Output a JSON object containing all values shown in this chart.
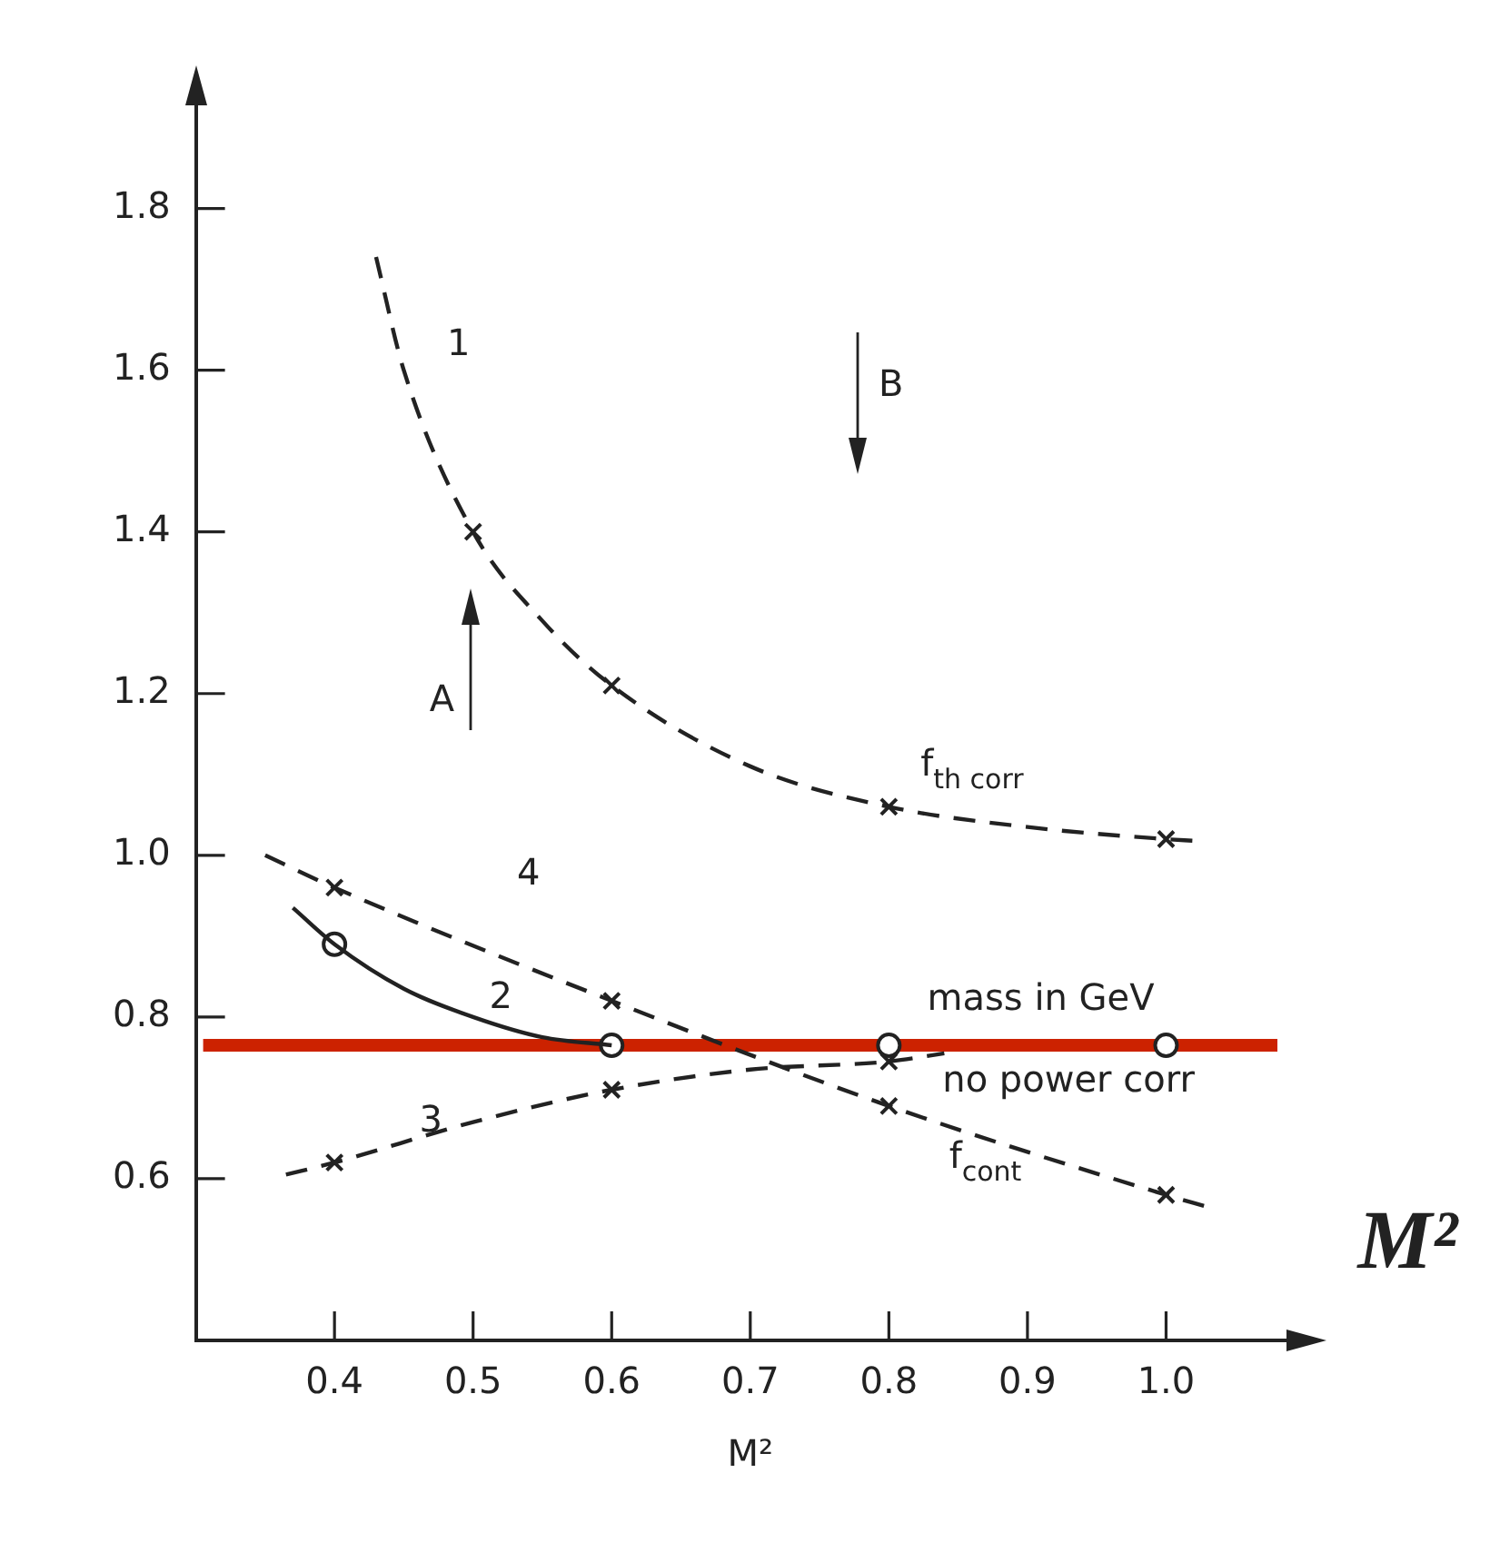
{
  "chart_data": {
    "type": "line",
    "xlabel": "M²",
    "xlim": [
      0.3,
      1.1
    ],
    "ylim": [
      0.4,
      1.95
    ],
    "xticks": [
      {
        "value": 0.4,
        "label": "0.4"
      },
      {
        "value": 0.5,
        "label": "0.5"
      },
      {
        "value": 0.6,
        "label": "0.6"
      },
      {
        "value": 0.7,
        "label": "0.7"
      },
      {
        "value": 0.8,
        "label": "0.8"
      },
      {
        "value": 0.9,
        "label": "0.9"
      },
      {
        "value": 1.0,
        "label": "1.0"
      }
    ],
    "yticks": [
      {
        "value": 0.6,
        "label": "0.6"
      },
      {
        "value": 0.8,
        "label": "0.8"
      },
      {
        "value": 1.0,
        "label": "1.0"
      },
      {
        "value": 1.2,
        "label": "1.2"
      },
      {
        "value": 1.4,
        "label": "1.4"
      },
      {
        "value": 1.6,
        "label": "1.6"
      },
      {
        "value": 1.8,
        "label": "1.8"
      }
    ],
    "grid": false,
    "legend": false,
    "series": [
      {
        "type": "line",
        "color": "#222222",
        "line_style": "dashed",
        "marker": "none",
        "x": [
          0.43,
          0.45,
          0.5,
          0.55,
          0.6,
          0.7,
          0.8,
          0.9,
          1.0,
          1.02
        ],
        "values": [
          1.74,
          1.6,
          1.4,
          1.29,
          1.21,
          1.11,
          1.06,
          1.035,
          1.02,
          1.018
        ]
      },
      {
        "type": "scatter",
        "color": "#222222",
        "marker": "cross",
        "x": [
          0.5,
          0.6,
          0.8,
          1.0
        ],
        "values": [
          1.4,
          1.21,
          1.06,
          1.02
        ]
      },
      {
        "type": "line",
        "color": "#222222",
        "line_style": "dashed",
        "marker": "none",
        "x": [
          0.35,
          0.4,
          0.6,
          0.8,
          1.0,
          1.03
        ],
        "values": [
          1.0,
          0.96,
          0.82,
          0.69,
          0.58,
          0.565
        ]
      },
      {
        "type": "scatter",
        "color": "#222222",
        "marker": "cross",
        "x": [
          0.4,
          0.6,
          0.8,
          1.0
        ],
        "values": [
          0.96,
          0.82,
          0.69,
          0.58
        ]
      },
      {
        "type": "line",
        "color": "#222222",
        "line_style": "solid",
        "marker": "none",
        "x": [
          0.37,
          0.4,
          0.45,
          0.5,
          0.55,
          0.6
        ],
        "values": [
          0.935,
          0.89,
          0.835,
          0.8,
          0.775,
          0.765
        ]
      },
      {
        "type": "scatter",
        "color": "#222222",
        "marker": "circle",
        "x": [
          0.4,
          0.6,
          0.8,
          1.0
        ],
        "values": [
          0.89,
          0.765,
          0.765,
          0.765
        ]
      },
      {
        "type": "line",
        "color": "#222222",
        "line_style": "dashed",
        "marker": "none",
        "x": [
          0.365,
          0.4,
          0.5,
          0.6,
          0.7,
          0.8,
          0.84
        ],
        "values": [
          0.605,
          0.62,
          0.67,
          0.71,
          0.735,
          0.745,
          0.755
        ]
      },
      {
        "type": "scatter",
        "color": "#222222",
        "marker": "cross",
        "x": [
          0.4,
          0.6,
          0.8
        ],
        "values": [
          0.62,
          0.71,
          0.745
        ]
      }
    ],
    "ref_lines": [
      {
        "axis": "y",
        "value": 0.765,
        "color": "#cc2200"
      }
    ],
    "annotations": [
      "1",
      "A",
      "B",
      "f$_{th corr}$",
      "4",
      "2",
      "3",
      "mass in GeV",
      "no power corr",
      "f$_{cont}$",
      "M²"
    ]
  }
}
